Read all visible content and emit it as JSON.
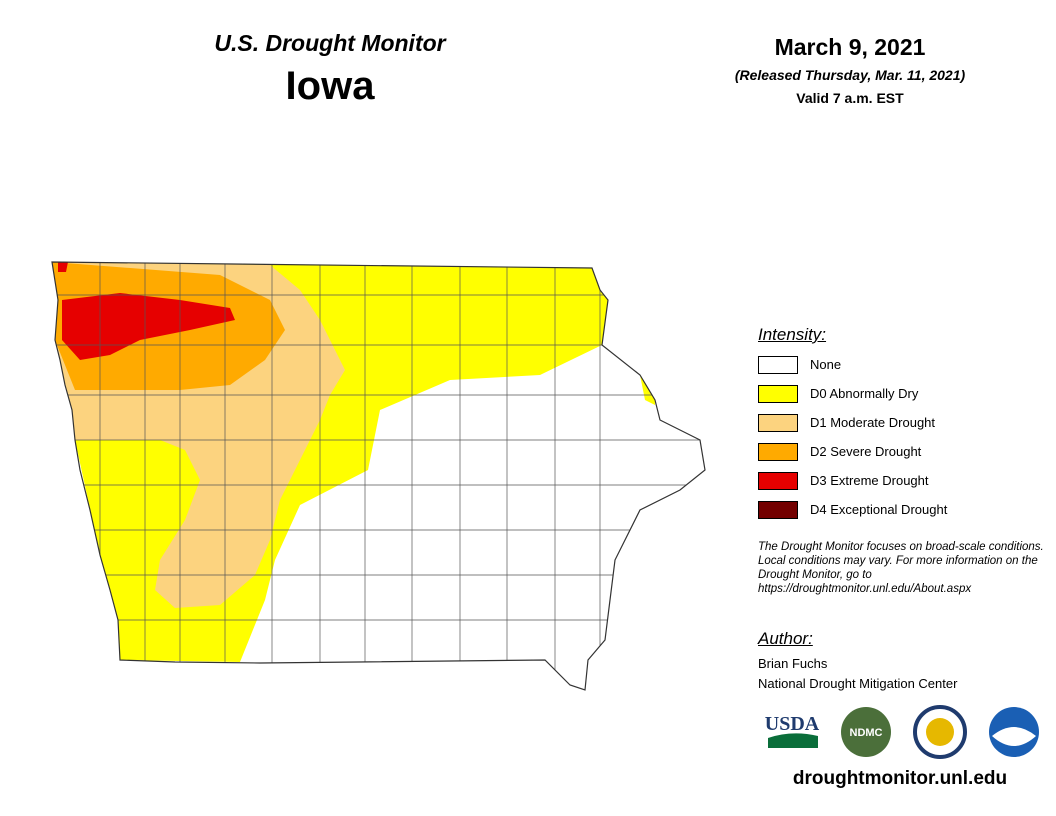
{
  "header": {
    "title": "U.S. Drought Monitor",
    "state": "Iowa",
    "date": "March 9, 2021",
    "released": "(Released Thursday, Mar. 11, 2021)",
    "valid": "Valid 7 a.m. EST"
  },
  "legend": {
    "title": "Intensity:",
    "items": [
      {
        "label": "None",
        "color": "#ffffff"
      },
      {
        "label": "D0 Abnormally Dry",
        "color": "#ffff00"
      },
      {
        "label": "D1 Moderate Drought",
        "color": "#fcd37f"
      },
      {
        "label": "D2 Severe Drought",
        "color": "#ffaa00"
      },
      {
        "label": "D3 Extreme Drought",
        "color": "#e60000"
      },
      {
        "label": "D4 Exceptional Drought",
        "color": "#730000"
      }
    ]
  },
  "note": "The Drought Monitor focuses on broad-scale conditions. Local conditions may vary. For more information on the Drought Monitor, go to https://droughtmonitor.unl.edu/About.aspx",
  "author": {
    "title": "Author:",
    "name": "Brian Fuchs",
    "org": "National Drought Mitigation Center"
  },
  "logos": [
    "USDA",
    "NDMC"
  ],
  "footer": "droughtmonitor.unl.edu"
}
